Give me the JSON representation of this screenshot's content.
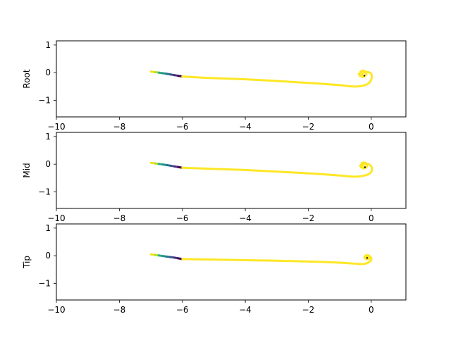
{
  "chart_data": [
    {
      "type": "line",
      "ylabel": "Root",
      "xlim": [
        -10,
        1.1
      ],
      "ylim": [
        -1.6,
        1.15
      ],
      "xticks": [
        -10,
        -8,
        -6,
        -4,
        -2,
        0
      ],
      "xtick_labels": [
        "−10",
        "−8",
        "−6",
        "−4",
        "−2",
        "0"
      ],
      "yticks": [
        -1,
        0,
        1
      ],
      "ytick_labels": [
        "−1",
        "0",
        "1"
      ],
      "grid": false,
      "gradient_segment": {
        "colormap": [
          "#f2e41c",
          "#b5dd2b",
          "#27ad81",
          "#20928c",
          "#2c728e",
          "#3b528b",
          "#472d7b",
          "#440154"
        ],
        "points": [
          [
            -7.0,
            0.04
          ],
          [
            -6.75,
            0.0
          ],
          [
            -6.5,
            -0.04
          ],
          [
            -6.25,
            -0.09
          ],
          [
            -6.0,
            -0.14
          ]
        ]
      },
      "main_curve": {
        "color": "#fde725",
        "points": [
          [
            -6.0,
            -0.14
          ],
          [
            -5.0,
            -0.2
          ],
          [
            -4.0,
            -0.24
          ],
          [
            -3.0,
            -0.3
          ],
          [
            -2.0,
            -0.37
          ],
          [
            -1.0,
            -0.45
          ],
          [
            -0.6,
            -0.5
          ],
          [
            -0.3,
            -0.48
          ],
          [
            -0.1,
            -0.4
          ],
          [
            0.0,
            -0.25
          ],
          [
            0.0,
            -0.05
          ],
          [
            -0.15,
            0.03
          ],
          [
            -0.28,
            -0.03
          ],
          [
            -0.3,
            -0.1
          ],
          [
            -0.22,
            -0.14
          ]
        ]
      },
      "swirl_points": [
        [
          -0.36,
          -0.02
        ],
        [
          -0.33,
          0.04
        ],
        [
          -0.27,
          0.07
        ],
        [
          -0.21,
          0.05
        ],
        [
          -0.16,
          -0.0
        ],
        [
          -0.16,
          -0.07
        ],
        [
          -0.2,
          -0.13
        ],
        [
          -0.28,
          -0.15
        ],
        [
          -0.36,
          -0.11
        ],
        [
          -0.39,
          -0.05
        ]
      ],
      "center_point": [
        -0.22,
        -0.11
      ]
    },
    {
      "type": "line",
      "ylabel": "Mid",
      "xlim": [
        -10,
        1.1
      ],
      "ylim": [
        -1.6,
        1.15
      ],
      "xticks": [
        -10,
        -8,
        -6,
        -4,
        -2,
        0
      ],
      "xtick_labels": [
        "−10",
        "−8",
        "−6",
        "−4",
        "−2",
        "0"
      ],
      "yticks": [
        -1,
        0,
        1
      ],
      "ytick_labels": [
        "−1",
        "0",
        "1"
      ],
      "grid": false,
      "gradient_segment": {
        "colormap": [
          "#f2e41c",
          "#b5dd2b",
          "#27ad81",
          "#20928c",
          "#2c728e",
          "#3b528b",
          "#472d7b",
          "#440154"
        ],
        "points": [
          [
            -7.0,
            0.05
          ],
          [
            -6.75,
            0.01
          ],
          [
            -6.5,
            -0.03
          ],
          [
            -6.25,
            -0.08
          ],
          [
            -6.0,
            -0.13
          ]
        ]
      },
      "main_curve": {
        "color": "#fde725",
        "points": [
          [
            -6.0,
            -0.13
          ],
          [
            -5.0,
            -0.17
          ],
          [
            -4.0,
            -0.21
          ],
          [
            -3.0,
            -0.27
          ],
          [
            -2.0,
            -0.33
          ],
          [
            -1.0,
            -0.41
          ],
          [
            -0.6,
            -0.45
          ],
          [
            -0.3,
            -0.43
          ],
          [
            -0.05,
            -0.34
          ],
          [
            0.02,
            -0.2
          ],
          [
            -0.02,
            -0.05
          ],
          [
            -0.15,
            0.02
          ],
          [
            -0.26,
            -0.03
          ],
          [
            -0.28,
            -0.1
          ],
          [
            -0.2,
            -0.13
          ]
        ]
      },
      "swirl_points": [
        [
          -0.32,
          -0.03
        ],
        [
          -0.3,
          0.03
        ],
        [
          -0.24,
          0.06
        ],
        [
          -0.18,
          0.04
        ],
        [
          -0.14,
          -0.01
        ],
        [
          -0.14,
          -0.08
        ],
        [
          -0.18,
          -0.13
        ],
        [
          -0.25,
          -0.15
        ],
        [
          -0.32,
          -0.11
        ],
        [
          -0.35,
          -0.06
        ]
      ],
      "center_point": [
        -0.2,
        -0.11
      ]
    },
    {
      "type": "line",
      "ylabel": "Tip",
      "xlim": [
        -10,
        1.1
      ],
      "ylim": [
        -1.6,
        1.15
      ],
      "xticks": [
        -10,
        -8,
        -6,
        -4,
        -2,
        0
      ],
      "xtick_labels": [
        "−10",
        "−8",
        "−6",
        "−4",
        "−2",
        "0"
      ],
      "yticks": [
        -1,
        0,
        1
      ],
      "ytick_labels": [
        "−1",
        "0",
        "1"
      ],
      "grid": false,
      "gradient_segment": {
        "colormap": [
          "#f2e41c",
          "#b5dd2b",
          "#27ad81",
          "#20928c",
          "#2c728e",
          "#3b528b",
          "#472d7b",
          "#440154"
        ],
        "points": [
          [
            -7.0,
            0.05
          ],
          [
            -6.75,
            0.01
          ],
          [
            -6.5,
            -0.03
          ],
          [
            -6.25,
            -0.07
          ],
          [
            -6.0,
            -0.12
          ]
        ]
      },
      "main_curve": {
        "color": "#fde725",
        "points": [
          [
            -6.0,
            -0.12
          ],
          [
            -5.0,
            -0.14
          ],
          [
            -4.0,
            -0.16
          ],
          [
            -3.0,
            -0.18
          ],
          [
            -2.0,
            -0.21
          ],
          [
            -1.0,
            -0.25
          ],
          [
            -0.5,
            -0.29
          ],
          [
            -0.25,
            -0.3
          ],
          [
            -0.08,
            -0.24
          ],
          [
            0.0,
            -0.14
          ],
          [
            -0.02,
            -0.05
          ],
          [
            -0.1,
            -0.01
          ],
          [
            -0.17,
            -0.04
          ],
          [
            -0.18,
            -0.09
          ],
          [
            -0.13,
            -0.12
          ]
        ]
      },
      "swirl_points": [
        [
          -0.19,
          -0.02
        ],
        [
          -0.16,
          0.01
        ],
        [
          -0.12,
          0.02
        ],
        [
          -0.08,
          0.0
        ],
        [
          -0.06,
          -0.04
        ],
        [
          -0.07,
          -0.09
        ],
        [
          -0.1,
          -0.12
        ],
        [
          -0.15,
          -0.12
        ],
        [
          -0.19,
          -0.09
        ],
        [
          -0.21,
          -0.05
        ]
      ],
      "center_point": [
        -0.13,
        -0.08
      ]
    }
  ]
}
